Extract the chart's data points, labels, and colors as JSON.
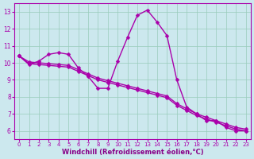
{
  "background_color": "#cce8ee",
  "plot_bg_color": "#cce8ee",
  "line_color": "#aa00aa",
  "marker": "D",
  "markersize": 2.5,
  "linewidth": 1.0,
  "xlabel": "Windchill (Refroidissement éolien,°C)",
  "xlabel_fontsize": 6,
  "xlabel_color": "#880088",
  "xtick_fontsize": 5,
  "ytick_fontsize": 5.5,
  "ylim": [
    5.5,
    13.5
  ],
  "xlim": [
    -0.5,
    23.5
  ],
  "xticks": [
    0,
    1,
    2,
    3,
    4,
    5,
    6,
    7,
    8,
    9,
    10,
    11,
    12,
    13,
    14,
    15,
    16,
    17,
    18,
    19,
    20,
    21,
    22,
    23
  ],
  "yticks": [
    6,
    7,
    8,
    9,
    10,
    11,
    12,
    13
  ],
  "grid_color": "#99ccbb",
  "series": [
    [
      10.4,
      9.9,
      10.1,
      10.5,
      10.6,
      10.5,
      9.7,
      9.2,
      8.5,
      8.5,
      10.1,
      11.5,
      12.8,
      13.1,
      12.4,
      11.6,
      9.0,
      7.4,
      7.0,
      6.6,
      6.6,
      6.2,
      6.0,
      6.0
    ],
    [
      10.4,
      9.95,
      9.9,
      9.85,
      9.8,
      9.75,
      9.5,
      9.25,
      9.0,
      8.85,
      8.7,
      8.55,
      8.4,
      8.25,
      8.1,
      7.95,
      7.5,
      7.2,
      6.9,
      6.7,
      6.5,
      6.3,
      6.1,
      6.0
    ],
    [
      10.4,
      10.05,
      10.0,
      9.95,
      9.9,
      9.85,
      9.6,
      9.35,
      9.1,
      8.95,
      8.8,
      8.65,
      8.5,
      8.35,
      8.2,
      8.05,
      7.6,
      7.3,
      7.0,
      6.8,
      6.6,
      6.4,
      6.2,
      6.1
    ]
  ]
}
